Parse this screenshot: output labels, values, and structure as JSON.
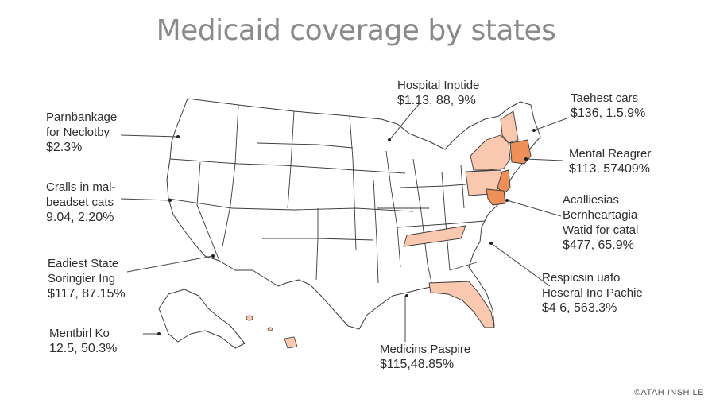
{
  "title": "Medicaid coverage by states",
  "colors": {
    "highlight_light": "#f9c8ae",
    "highlight_medium": "#f5a98a",
    "highlight_dark": "#ef8f5a",
    "outline": "#3a3a3a",
    "text": "#2e2e2e",
    "title": "#8a8a8a"
  },
  "callouts": [
    {
      "lines": [
        "Parnbankage",
        "for Neclotby"
      ],
      "value": "$2.3%"
    },
    {
      "lines": [
        "Cralls in mal-",
        "beadset cats"
      ],
      "value": "9.04, 2.20%"
    },
    {
      "lines": [
        "Eadiest State",
        "Soringier Ing"
      ],
      "value": "$117, 87.15%"
    },
    {
      "lines": [
        "Mentbirl Ko"
      ],
      "value": "12.5, 50.3%"
    },
    {
      "lines": [
        "Hospital Inptide"
      ],
      "value": "$1.13, 88, 9%"
    },
    {
      "lines": [
        "Taehest cars"
      ],
      "value": "$136, 1.5.9%"
    },
    {
      "lines": [
        "Mental Reagrer"
      ],
      "value": "$113, 57409%"
    },
    {
      "lines": [
        "Acalliesias",
        "Bernheartagia",
        "Watid for catal"
      ],
      "value": "$477, 65.9%"
    },
    {
      "lines": [
        "Respicsin uafo",
        "Heseral Ino Pachie"
      ],
      "value": "$4 6, 563.3%"
    },
    {
      "lines": [
        "Medicins Paspire"
      ],
      "value": "$115,48.85%"
    }
  ],
  "credit": "©ATAH INSHILE"
}
